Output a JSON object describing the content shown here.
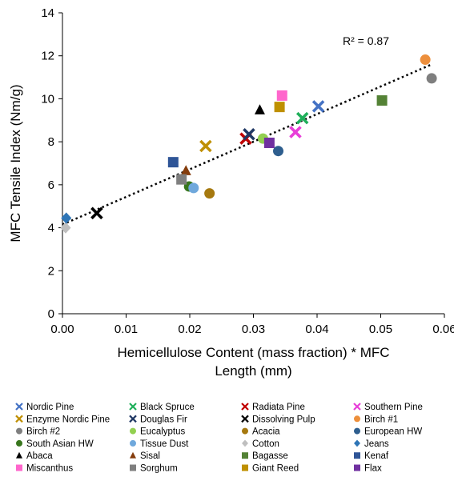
{
  "chart_data": {
    "type": "scatter",
    "xlabel_lines": [
      "Hemicellulose Content (mass fraction) * MFC",
      "Length (mm)"
    ],
    "ylabel": "MFC Tensile Index (Nm/g)",
    "xlim": [
      0,
      0.06
    ],
    "ylim": [
      0,
      14
    ],
    "x_ticks": [
      "0.00",
      "0.01",
      "0.02",
      "0.03",
      "0.04",
      "0.05",
      "0.06"
    ],
    "y_ticks": [
      "0",
      "2",
      "4",
      "6",
      "8",
      "10",
      "12",
      "14"
    ],
    "grid": false,
    "legend_position": "bottom",
    "trendline": {
      "style": "dotted",
      "color": "#000000",
      "x": [
        0,
        0.058
      ],
      "y": [
        4.15,
        11.6
      ],
      "label": "R² = 0.87"
    },
    "series": [
      {
        "name": "Nordic Pine",
        "marker": "x",
        "color": "#4472C4",
        "points": [
          [
            0.0402,
            9.65
          ]
        ]
      },
      {
        "name": "Black Spruce",
        "marker": "x",
        "color": "#1FAF5A",
        "points": [
          [
            0.0377,
            9.1
          ]
        ]
      },
      {
        "name": "Radiata Pine",
        "marker": "x",
        "color": "#C00000",
        "points": [
          [
            0.0288,
            8.15
          ]
        ]
      },
      {
        "name": "Southern Pine",
        "marker": "x",
        "color": "#E83ED8",
        "points": [
          [
            0.0366,
            8.45
          ]
        ]
      },
      {
        "name": "Enzyme Nordic Pine",
        "marker": "x",
        "color": "#BF8F00",
        "points": [
          [
            0.0225,
            7.8
          ]
        ]
      },
      {
        "name": "Douglas Fir",
        "marker": "x",
        "color": "#203864",
        "points": [
          [
            0.0293,
            8.35
          ]
        ]
      },
      {
        "name": "Dissolving Pulp",
        "marker": "x",
        "color": "#000000",
        "points": [
          [
            0.0054,
            4.68
          ]
        ]
      },
      {
        "name": "Birch #1",
        "marker": "circle",
        "color": "#ED8F3C",
        "points": [
          [
            0.057,
            11.82
          ]
        ]
      },
      {
        "name": "Birch #2",
        "marker": "circle",
        "color": "#7F7F7F",
        "points": [
          [
            0.058,
            10.95
          ]
        ]
      },
      {
        "name": "Eucalyptus",
        "marker": "circle",
        "color": "#92D050",
        "points": [
          [
            0.0315,
            8.15
          ]
        ]
      },
      {
        "name": "Acacia",
        "marker": "circle",
        "color": "#A6790F",
        "points": [
          [
            0.0231,
            5.6
          ]
        ]
      },
      {
        "name": "European HW",
        "marker": "circle",
        "color": "#2E5E8E",
        "points": [
          [
            0.0339,
            7.57
          ]
        ]
      },
      {
        "name": "South Asian HW",
        "marker": "circle",
        "color": "#38761D",
        "points": [
          [
            0.0199,
            5.92
          ]
        ]
      },
      {
        "name": "Tissue Dust",
        "marker": "circle",
        "color": "#6FA8DC",
        "points": [
          [
            0.0206,
            5.85
          ]
        ]
      },
      {
        "name": "Cotton",
        "marker": "diamond",
        "color": "#BFBFBF",
        "points": [
          [
            0.0005,
            4.0
          ]
        ]
      },
      {
        "name": "Jeans",
        "marker": "diamond",
        "color": "#2E75B6",
        "points": [
          [
            0.0006,
            4.45
          ]
        ]
      },
      {
        "name": "Abaca",
        "marker": "triangle",
        "color": "#000000",
        "points": [
          [
            0.031,
            9.48
          ]
        ]
      },
      {
        "name": "Sisal",
        "marker": "triangle",
        "color": "#843C0C",
        "points": [
          [
            0.0194,
            6.65
          ]
        ]
      },
      {
        "name": "Bagasse",
        "marker": "square",
        "color": "#548235",
        "points": [
          [
            0.0502,
            9.92
          ]
        ]
      },
      {
        "name": "Kenaf",
        "marker": "square",
        "color": "#2F5597",
        "points": [
          [
            0.0174,
            7.05
          ]
        ]
      },
      {
        "name": "Miscanthus",
        "marker": "square",
        "color": "#FF66CC",
        "points": [
          [
            0.0345,
            10.15
          ]
        ]
      },
      {
        "name": "Sorghum",
        "marker": "square",
        "color": "#7F7F7F",
        "points": [
          [
            0.0187,
            6.25
          ]
        ]
      },
      {
        "name": "Giant Reed",
        "marker": "square",
        "color": "#BF9000",
        "points": [
          [
            0.0341,
            9.62
          ]
        ]
      },
      {
        "name": "Flax",
        "marker": "square",
        "color": "#7030A0",
        "points": [
          [
            0.0325,
            7.95
          ]
        ]
      }
    ]
  }
}
